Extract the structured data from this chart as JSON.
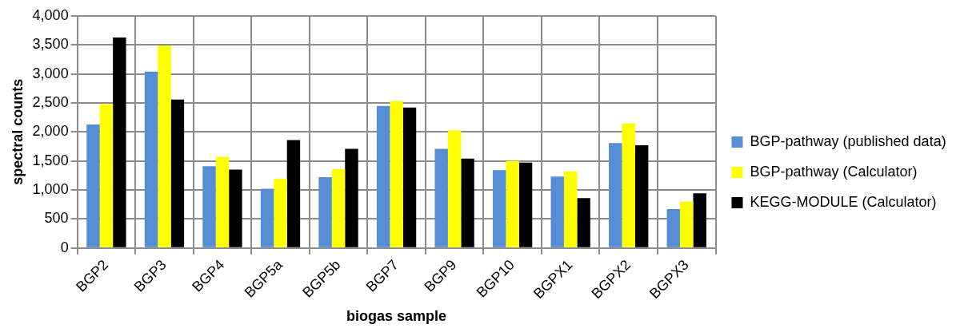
{
  "chart_data": {
    "type": "bar",
    "xlabel": "biogas sample",
    "ylabel": "spectral counts",
    "categories": [
      "BGP2",
      "BGP3",
      "BGP4",
      "BGP5a",
      "BGP5b",
      "BGP7",
      "BGP9",
      "BGP10",
      "BGPX1",
      "BGPX2",
      "BGPX3"
    ],
    "series": [
      {
        "name": "BGP-pathway (published data)",
        "color": "#558ed5",
        "values": [
          2130,
          3040,
          1410,
          1020,
          1220,
          2450,
          1710,
          1340,
          1230,
          1810,
          670
        ]
      },
      {
        "name": "BGP-pathway (Calculator)",
        "color": "#ffff00",
        "values": [
          2480,
          3490,
          1570,
          1190,
          1360,
          2530,
          2030,
          1500,
          1320,
          2150,
          800
        ]
      },
      {
        "name": "KEGG-MODULE (Calculator)",
        "color": "#000000",
        "values": [
          3630,
          2560,
          1350,
          1860,
          1710,
          2420,
          1540,
          1470,
          860,
          1770,
          940
        ]
      }
    ],
    "ylim": [
      0,
      4000
    ],
    "yticks": [
      {
        "value": 0,
        "label": "0"
      },
      {
        "value": 500,
        "label": "500"
      },
      {
        "value": 1000,
        "label": "1,000"
      },
      {
        "value": 1500,
        "label": "1,500"
      },
      {
        "value": 2000,
        "label": "2,000"
      },
      {
        "value": 2500,
        "label": "2,500"
      },
      {
        "value": 3000,
        "label": "3,000"
      },
      {
        "value": 3500,
        "label": "3,500"
      },
      {
        "value": 4000,
        "label": "4,000"
      }
    ],
    "grid": true,
    "legend": "right"
  }
}
